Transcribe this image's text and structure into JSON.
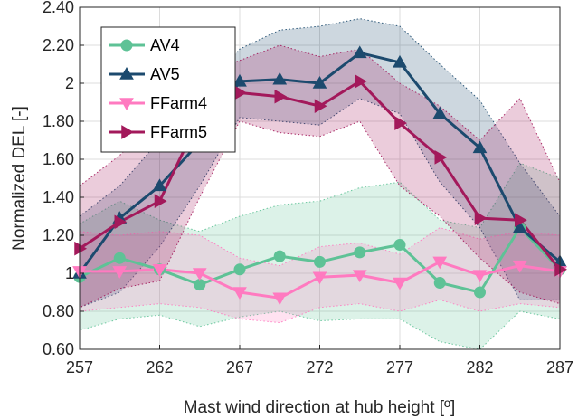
{
  "chart_data": {
    "type": "line",
    "xlabel": "Mast wind direction at hub height [º]",
    "ylabel": "Normalized DEL [-]",
    "xlim": [
      257,
      287
    ],
    "ylim": [
      0.6,
      2.4
    ],
    "xticks": [
      257,
      262,
      267,
      272,
      277,
      282,
      287
    ],
    "xtick_labels": [
      "257",
      "262",
      "267",
      "272",
      "277",
      "282",
      "287"
    ],
    "yticks": [
      0.6,
      0.8,
      1.0,
      1.2,
      1.4,
      1.6,
      1.8,
      2.0,
      2.2,
      2.4
    ],
    "ytick_labels": [
      "0.60",
      "0.80",
      "1",
      "1.20",
      "1.40",
      "1.60",
      "1.80",
      "2",
      "2.20",
      "2.40"
    ],
    "grid": true,
    "legend_position": "top-left",
    "x": [
      257,
      259.5,
      262,
      264.5,
      267,
      269.5,
      272,
      274.5,
      277,
      279.5,
      282,
      284.5,
      287
    ],
    "series": [
      {
        "name": "AV4",
        "color": "#5ec296",
        "marker": "circle",
        "values": [
          0.98,
          1.08,
          1.02,
          0.94,
          1.02,
          1.09,
          1.06,
          1.11,
          1.15,
          0.95,
          0.9,
          1.24,
          1.02
        ],
        "lower": [
          0.7,
          0.76,
          0.78,
          0.72,
          0.77,
          0.8,
          0.75,
          0.76,
          0.76,
          0.64,
          0.6,
          0.8,
          0.76
        ],
        "upper": [
          1.26,
          1.38,
          1.28,
          1.22,
          1.3,
          1.36,
          1.38,
          1.45,
          1.48,
          1.28,
          1.24,
          1.58,
          1.5
        ]
      },
      {
        "name": "AV5",
        "color": "#1c4a6e",
        "marker": "triangle-up",
        "values": [
          1.0,
          1.29,
          1.46,
          1.69,
          2.01,
          2.02,
          2.0,
          2.16,
          2.11,
          1.84,
          1.66,
          1.24,
          1.06
        ],
        "lower": [
          0.82,
          0.9,
          1.14,
          1.46,
          1.82,
          1.8,
          1.78,
          1.92,
          1.84,
          1.48,
          1.24,
          0.86,
          0.86
        ],
        "upper": [
          1.3,
          1.46,
          1.7,
          1.93,
          2.18,
          2.28,
          2.3,
          2.34,
          2.3,
          2.1,
          1.91,
          1.58,
          1.3
        ]
      },
      {
        "name": "FFarm4",
        "color": "#ff7ac0",
        "marker": "triangle-down",
        "values": [
          1.01,
          1.01,
          1.02,
          1.0,
          0.9,
          0.87,
          0.98,
          0.99,
          0.95,
          1.06,
          0.99,
          1.04,
          1.01
        ],
        "lower": [
          0.8,
          0.82,
          0.84,
          0.82,
          0.76,
          0.74,
          0.82,
          0.84,
          0.8,
          0.86,
          0.8,
          0.84,
          0.82
        ],
        "upper": [
          1.22,
          1.2,
          1.22,
          1.2,
          1.08,
          1.04,
          1.14,
          1.16,
          1.1,
          1.24,
          1.18,
          1.22,
          1.2
        ]
      },
      {
        "name": "FFarm5",
        "color": "#a3195b",
        "marker": "triangle-right",
        "values": [
          1.13,
          1.27,
          1.38,
          1.82,
          1.95,
          1.93,
          1.88,
          2.01,
          1.79,
          1.61,
          1.29,
          1.28,
          1.02
        ],
        "lower": [
          0.82,
          0.92,
          0.96,
          1.4,
          1.8,
          1.74,
          1.72,
          1.8,
          1.46,
          1.3,
          1.08,
          0.9,
          0.84
        ],
        "upper": [
          1.46,
          1.62,
          1.82,
          2.04,
          2.12,
          2.2,
          2.14,
          2.18,
          2.0,
          1.88,
          1.7,
          1.92,
          1.48
        ]
      }
    ]
  }
}
